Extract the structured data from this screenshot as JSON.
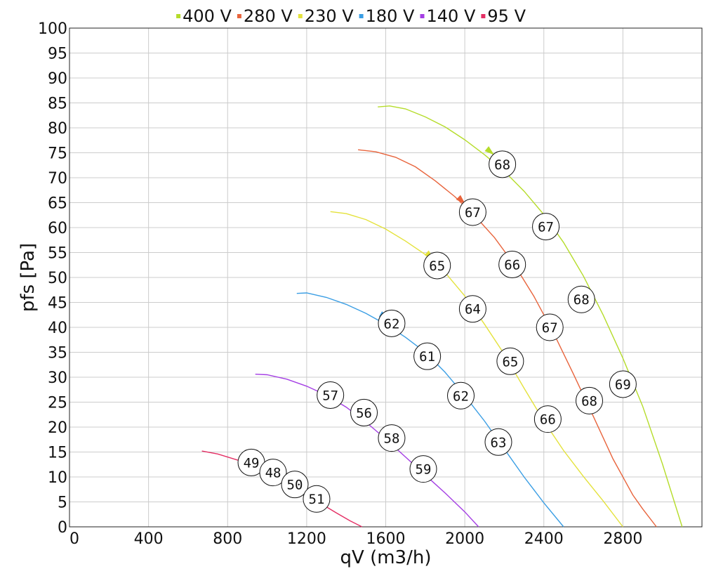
{
  "chart_data": {
    "type": "line",
    "xlabel": "qV (m3/h)",
    "ylabel": "pfs [Pa]",
    "xlim": [
      0,
      3200
    ],
    "ylim": [
      0,
      100
    ],
    "x_ticks": [
      "0",
      "400",
      "800",
      "1200",
      "1600",
      "2000",
      "2400",
      "2800"
    ],
    "y_ticks": [
      "0",
      "5",
      "10",
      "15",
      "20",
      "25",
      "30",
      "35",
      "40",
      "45",
      "50",
      "55",
      "60",
      "65",
      "70",
      "75",
      "80",
      "85",
      "90",
      "95",
      "100"
    ],
    "grid": true,
    "legend_position": "top",
    "series": [
      {
        "name": "400 V",
        "color": "#b5dc2a",
        "x": [
          1560,
          1620,
          1700,
          1800,
          1900,
          2000,
          2100,
          2200,
          2300,
          2400,
          2500,
          2600,
          2700,
          2800,
          2900,
          3000,
          3100
        ],
        "y": [
          84.2,
          84.4,
          83.8,
          82.2,
          80.2,
          77.6,
          74.6,
          71.3,
          67.3,
          62.6,
          57.0,
          50.3,
          42.5,
          33.8,
          24.2,
          12.6,
          0
        ],
        "arrow": {
          "x": 2130,
          "y": 75.2
        },
        "points": [
          {
            "x": 2190,
            "y": 72.7,
            "label": "68"
          },
          {
            "x": 2410,
            "y": 60.2,
            "label": "67"
          },
          {
            "x": 2590,
            "y": 45.6,
            "label": "68"
          },
          {
            "x": 2800,
            "y": 28.6,
            "label": "69"
          }
        ]
      },
      {
        "name": "280 V",
        "color": "#e8643c",
        "x": [
          1460,
          1550,
          1650,
          1750,
          1850,
          1950,
          2050,
          2150,
          2250,
          2350,
          2450,
          2550,
          2650,
          2750,
          2850,
          2900,
          2970
        ],
        "y": [
          75.6,
          75.2,
          74.1,
          72.2,
          69.4,
          66.2,
          62.4,
          58.0,
          52.6,
          46.2,
          38.8,
          30.6,
          22.2,
          13.6,
          6.4,
          3.6,
          0
        ],
        "arrow": {
          "x": 1985,
          "y": 65.4
        },
        "points": [
          {
            "x": 2040,
            "y": 63.1,
            "label": "67"
          },
          {
            "x": 2240,
            "y": 52.6,
            "label": "66"
          },
          {
            "x": 2430,
            "y": 40.0,
            "label": "67"
          },
          {
            "x": 2630,
            "y": 25.3,
            "label": "68"
          }
        ]
      },
      {
        "name": "230 V",
        "color": "#e4e23c",
        "x": [
          1320,
          1400,
          1500,
          1600,
          1700,
          1800,
          1900,
          2000,
          2100,
          2200,
          2300,
          2400,
          2500,
          2600,
          2700,
          2800
        ],
        "y": [
          63.2,
          62.8,
          61.6,
          59.7,
          57.3,
          54.6,
          51.0,
          46.3,
          40.6,
          34.6,
          27.8,
          21.2,
          15.3,
          10.1,
          5.2,
          0
        ],
        "arrow": {
          "x": 1825,
          "y": 54.3
        },
        "points": [
          {
            "x": 1860,
            "y": 52.4,
            "label": "65"
          },
          {
            "x": 2040,
            "y": 43.7,
            "label": "64"
          },
          {
            "x": 2230,
            "y": 33.2,
            "label": "65"
          },
          {
            "x": 2420,
            "y": 21.6,
            "label": "66"
          }
        ]
      },
      {
        "name": "180 V",
        "color": "#3a9ee4",
        "x": [
          1150,
          1200,
          1300,
          1400,
          1500,
          1600,
          1700,
          1800,
          1900,
          2000,
          2100,
          2200,
          2300,
          2400,
          2500
        ],
        "y": [
          46.8,
          46.9,
          46.0,
          44.6,
          42.8,
          40.6,
          38.0,
          35.0,
          31.0,
          26.3,
          21.2,
          15.6,
          10.0,
          4.8,
          0
        ],
        "arrow": {
          "x": 1595,
          "y": 42.2
        },
        "points": [
          {
            "x": 1630,
            "y": 40.8,
            "label": "62"
          },
          {
            "x": 1810,
            "y": 34.2,
            "label": "61"
          },
          {
            "x": 1980,
            "y": 26.3,
            "label": "62"
          },
          {
            "x": 2170,
            "y": 17.0,
            "label": "63"
          }
        ]
      },
      {
        "name": "140 V",
        "color": "#a43ee4",
        "x": [
          940,
          1000,
          1100,
          1200,
          1300,
          1400,
          1500,
          1600,
          1700,
          1800,
          1900,
          2000,
          2070
        ],
        "y": [
          30.6,
          30.5,
          29.6,
          28.2,
          26.4,
          24.0,
          21.0,
          17.6,
          14.0,
          10.4,
          6.8,
          3.0,
          0
        ],
        "points": [
          {
            "x": 1320,
            "y": 26.4,
            "label": "57"
          },
          {
            "x": 1490,
            "y": 22.9,
            "label": "56"
          },
          {
            "x": 1630,
            "y": 17.8,
            "label": "58"
          },
          {
            "x": 1790,
            "y": 11.6,
            "label": "59"
          }
        ]
      },
      {
        "name": "95 V",
        "color": "#e42e64",
        "x": [
          670,
          750,
          850,
          950,
          1050,
          1150,
          1250,
          1350,
          1420,
          1480
        ],
        "y": [
          15.2,
          14.6,
          13.4,
          11.8,
          9.9,
          7.6,
          5.2,
          2.8,
          1.2,
          0
        ],
        "points": [
          {
            "x": 920,
            "y": 12.9,
            "label": "49"
          },
          {
            "x": 1030,
            "y": 10.9,
            "label": "48"
          },
          {
            "x": 1140,
            "y": 8.5,
            "label": "50"
          },
          {
            "x": 1250,
            "y": 5.6,
            "label": "51"
          }
        ]
      }
    ]
  }
}
